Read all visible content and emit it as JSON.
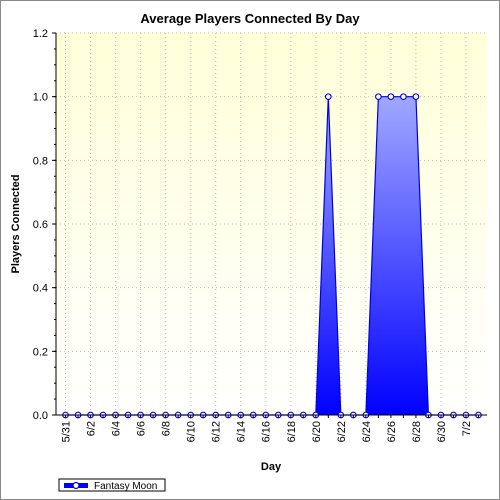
{
  "chart_data": {
    "type": "area",
    "title": "Average Players Connected By Day",
    "xlabel": "Day",
    "ylabel": "Players Connected",
    "ylim": [
      0,
      1.2
    ],
    "yticks": [
      "0.0",
      "0.2",
      "0.4",
      "0.6",
      "0.8",
      "1.0",
      "1.2"
    ],
    "y_tick_values": [
      0,
      0.2,
      0.4,
      0.6,
      0.8,
      1.0,
      1.2
    ],
    "x": [
      "5/31",
      "6/1",
      "6/2",
      "6/3",
      "6/4",
      "6/5",
      "6/6",
      "6/7",
      "6/8",
      "6/9",
      "6/10",
      "6/11",
      "6/12",
      "6/13",
      "6/14",
      "6/15",
      "6/16",
      "6/17",
      "6/18",
      "6/19",
      "6/20",
      "6/21",
      "6/22",
      "6/23",
      "6/24",
      "6/25",
      "6/26",
      "6/27",
      "6/28",
      "6/29",
      "6/30",
      "7/1",
      "7/2",
      "7/3"
    ],
    "x_tick_labels": [
      "5/31",
      "6/2",
      "6/4",
      "6/6",
      "6/8",
      "6/10",
      "6/12",
      "6/14",
      "6/16",
      "6/18",
      "6/20",
      "6/22",
      "6/24",
      "6/26",
      "6/28",
      "6/30",
      "7/2"
    ],
    "series": [
      {
        "name": "Fantasy Moon",
        "values": [
          0,
          0,
          0,
          0,
          0,
          0,
          0,
          0,
          0,
          0,
          0,
          0,
          0,
          0,
          0,
          0,
          0,
          0,
          0,
          0,
          0,
          1.0,
          0,
          0,
          0,
          1.0,
          1.0,
          1.0,
          1.0,
          0,
          0,
          0,
          0,
          0
        ]
      }
    ],
    "grid": true,
    "legend_position": "bottom-left",
    "colors": {
      "plot_background_top": "#ffffd8",
      "plot_background_bottom": "#ffffff",
      "area_top": "#a0a8ff",
      "area_bottom": "#0000ff",
      "line": "#0000e0",
      "marker_fill": "#ffffff",
      "grid": "#bbbbbb"
    }
  }
}
